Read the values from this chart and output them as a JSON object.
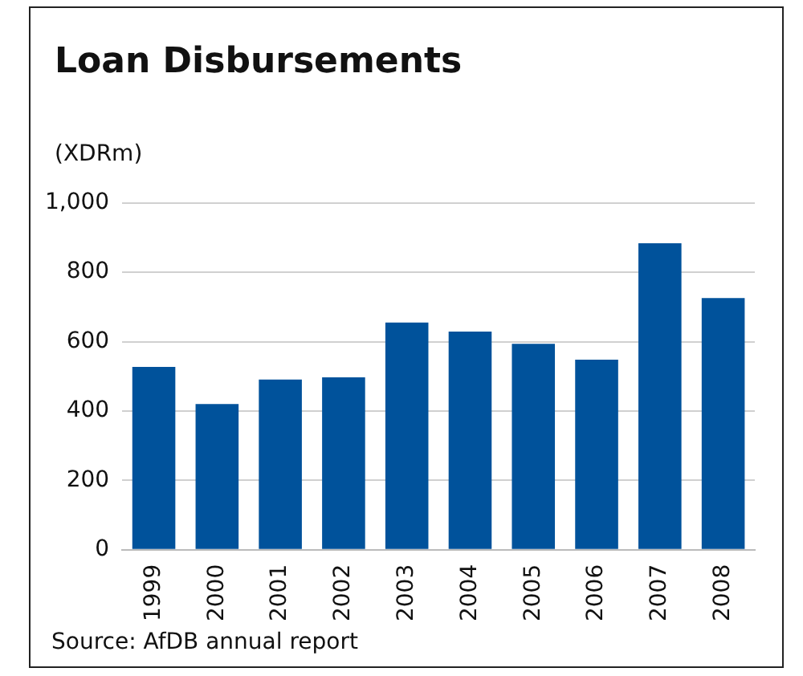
{
  "chart_data": {
    "type": "bar",
    "title": "Loan Disbursements",
    "ylabel": "(XDRm)",
    "categories": [
      "1999",
      "2000",
      "2001",
      "2002",
      "2003",
      "2004",
      "2005",
      "2006",
      "2007",
      "2008"
    ],
    "values": [
      527,
      420,
      491,
      497,
      655,
      629,
      594,
      548,
      884,
      726
    ],
    "color": "#00529b",
    "ylim": [
      0,
      1000
    ],
    "yticks": [
      0,
      {
        "value": 200,
        "label": "200"
      },
      {
        "value": 400,
        "label": "400"
      },
      {
        "value": 600,
        "label": "600"
      },
      {
        "value": 800,
        "label": "800"
      },
      {
        "value": 1000,
        "label": "1,000"
      }
    ],
    "grid": "y",
    "annotations": [
      "Source: AfDB annual report"
    ]
  }
}
